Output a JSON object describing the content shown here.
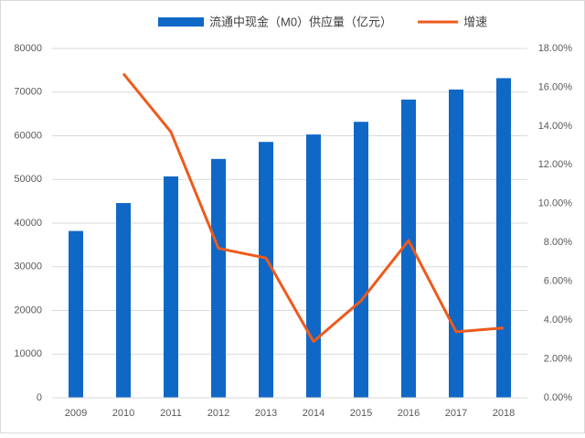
{
  "chart_data": {
    "type": "bar-line",
    "categories": [
      "2009",
      "2010",
      "2011",
      "2012",
      "2013",
      "2014",
      "2015",
      "2016",
      "2017",
      "2018"
    ],
    "series": [
      {
        "name": "流通中现金（M0）供应量（亿元）",
        "type": "bar",
        "color": "#1068c6",
        "values": [
          38200,
          44600,
          50700,
          54700,
          58600,
          60300,
          63200,
          68300,
          70600,
          73200
        ]
      },
      {
        "name": "增速",
        "type": "line",
        "axis": "y2",
        "color": "#ee5a1c",
        "values": [
          null,
          16.7,
          13.7,
          7.7,
          7.2,
          2.9,
          5.0,
          8.1,
          3.4,
          3.6
        ]
      }
    ],
    "ylim": [
      0,
      80000
    ],
    "yticks": [
      0,
      10000,
      20000,
      30000,
      40000,
      50000,
      60000,
      70000,
      80000
    ],
    "y2lim": [
      0,
      18
    ],
    "y2ticks": [
      {
        "value": 0,
        "label": "0.00%"
      },
      {
        "value": 2,
        "label": "2.00%"
      },
      {
        "value": 4,
        "label": "4.00%"
      },
      {
        "value": 6,
        "label": "6.00%"
      },
      {
        "value": 8,
        "label": "8.00%"
      },
      {
        "value": 10,
        "label": "10.00%"
      },
      {
        "value": 12,
        "label": "12.00%"
      },
      {
        "value": 14,
        "label": "14.00%"
      },
      {
        "value": 16,
        "label": "16.00%"
      },
      {
        "value": 18,
        "label": "18.00%"
      }
    ],
    "grid": true,
    "legend": "top"
  }
}
